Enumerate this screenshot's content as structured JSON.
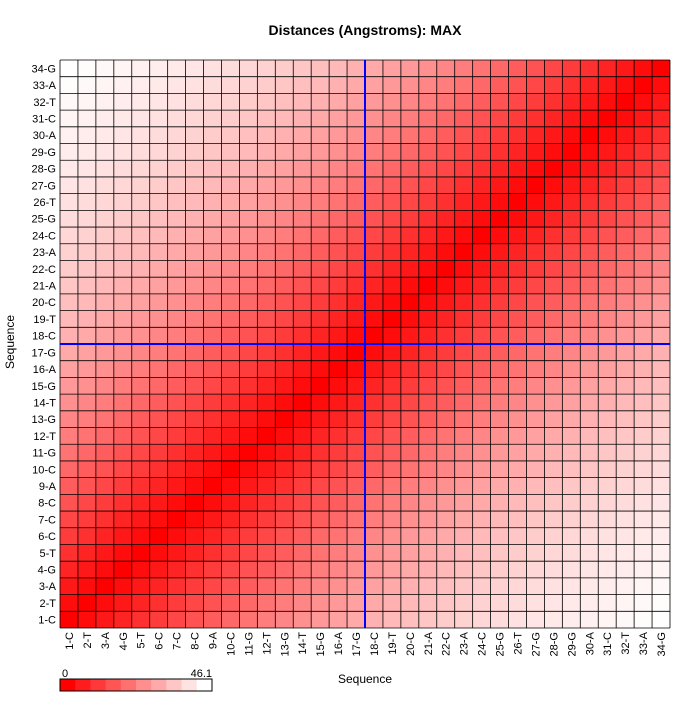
{
  "chart_data": {
    "type": "heatmap",
    "title": "Distances (Angstroms):  MAX",
    "xlabel": "Sequence",
    "ylabel": "Sequence",
    "labels": [
      "1-C",
      "2-T",
      "3-A",
      "4-G",
      "5-T",
      "6-C",
      "7-C",
      "8-C",
      "9-A",
      "10-C",
      "11-G",
      "12-T",
      "13-G",
      "14-T",
      "15-G",
      "16-A",
      "17-G",
      "18-C",
      "19-T",
      "20-C",
      "21-A",
      "22-C",
      "23-A",
      "24-C",
      "25-G",
      "26-T",
      "27-G",
      "28-G",
      "29-G",
      "30-A",
      "31-C",
      "32-T",
      "33-A",
      "34-G"
    ],
    "value_range": [
      0,
      46.1
    ],
    "scale_min_label": "0",
    "scale_max_label": "46.1",
    "colormap": {
      "low": "#ff0000",
      "high": "#ffffff"
    },
    "selection_marker": {
      "row": "17-G",
      "col": "17-G",
      "color": "#0000ff"
    },
    "value_model": "helical duplex: distance grows with |i-j| to a maximum near the opposite end of the strand",
    "note": "Cell values estimated from color intensity; matrix is symmetric with zero diagonal."
  }
}
